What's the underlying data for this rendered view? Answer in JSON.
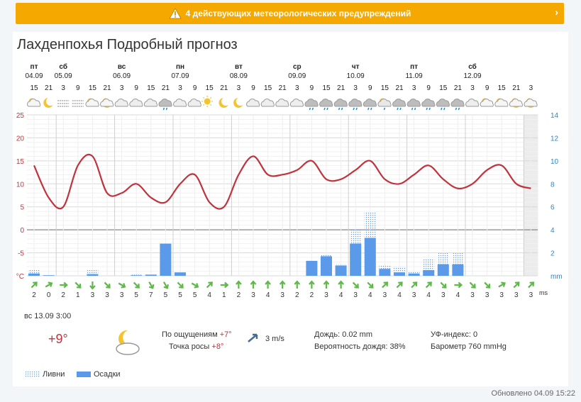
{
  "banner": {
    "text": "4 действующих метеорологических предупреждений",
    "color": "#f5a800"
  },
  "page_title": "Лахденпохья Подробный прогноз",
  "days": [
    {
      "label": "пт",
      "date": "04.09"
    },
    {
      "label": "сб",
      "date": "05.09"
    },
    {
      "label": "вс",
      "date": "06.09"
    },
    {
      "label": "пн",
      "date": "07.09"
    },
    {
      "label": "вт",
      "date": "08.09"
    },
    {
      "label": "ср",
      "date": "09.09"
    },
    {
      "label": "чт",
      "date": "10.09"
    },
    {
      "label": "пт",
      "date": "11.09"
    },
    {
      "label": "сб",
      "date": "12.09"
    }
  ],
  "hours": [
    "15",
    "21",
    "3",
    "9",
    "15",
    "21",
    "3",
    "9",
    "15",
    "21",
    "3",
    "9",
    "15",
    "21",
    "3",
    "9",
    "15",
    "21",
    "3",
    "9",
    "15",
    "21",
    "3",
    "9",
    "15",
    "21",
    "3",
    "9",
    "15",
    "21",
    "3",
    "9",
    "15",
    "21",
    "3"
  ],
  "icons": [
    "partly-cloudy-icon",
    "moon-icon",
    "fog-icon",
    "fog-icon",
    "sun-cloud-icon",
    "moon-cloud-icon",
    "cloud-icon",
    "cloud-icon",
    "cloud-icon",
    "rain-cloud-icon",
    "cloud-icon",
    "cloud-icon",
    "sun-icon",
    "moon-icon",
    "moon-icon",
    "cloud-icon",
    "cloud-icon",
    "cloud-icon",
    "cloud-icon",
    "rain-cloud-icon",
    "rain-cloud-icon",
    "rain-cloud-icon",
    "rain-cloud-icon",
    "rain-cloud-icon",
    "sun-rain-icon",
    "rain-cloud-icon",
    "rain-cloud-icon",
    "rain-cloud-icon",
    "rain-cloud-icon",
    "rain-cloud-icon",
    "cloud-icon",
    "sun-cloud-icon",
    "sun-cloud-icon",
    "moon-cloud-icon",
    "moon-cloud-icon"
  ],
  "chart_data": {
    "type": "line+bar",
    "temp_ylabels": [
      "25",
      "20",
      "15",
      "10",
      "5",
      "0",
      "-5",
      "°C"
    ],
    "precip_ylabels": [
      "14",
      "12",
      "10",
      "8",
      "6",
      "4",
      "2",
      "mm"
    ],
    "temp_range": [
      -10,
      25
    ],
    "precip_range": [
      0,
      14
    ],
    "temperature": [
      14,
      7,
      5,
      14,
      16,
      8,
      8,
      10,
      7,
      6,
      10,
      12,
      6,
      5,
      12,
      16,
      12,
      12,
      13,
      15,
      11,
      11,
      13,
      15,
      11,
      10,
      12,
      14,
      11,
      9,
      10,
      13,
      14,
      10,
      9
    ],
    "precip_rain": [
      0.2,
      0.05,
      0,
      0,
      0.15,
      0,
      0,
      0.05,
      0.1,
      2.8,
      0.3,
      0,
      0,
      0,
      0,
      0,
      0,
      0,
      0,
      1.3,
      1.7,
      0.9,
      2.8,
      3.3,
      0.6,
      0.3,
      0.2,
      0.5,
      1.0,
      1.0,
      0,
      0,
      0,
      0,
      0
    ],
    "precip_showers": [
      0.5,
      0,
      0,
      0,
      0.5,
      0,
      0,
      0.1,
      0.1,
      0,
      0,
      0,
      0,
      0,
      0,
      0,
      0,
      0,
      0,
      0,
      1.9,
      1.0,
      4.0,
      5.5,
      0.9,
      0.8,
      0.4,
      1.5,
      2.0,
      2.0,
      0,
      0,
      0,
      0,
      0
    ],
    "wind": [
      2,
      0,
      2,
      1,
      3,
      3,
      3,
      5,
      7,
      5,
      5,
      5,
      4,
      1,
      2,
      3,
      4,
      3,
      2,
      2,
      3,
      4,
      3,
      4,
      3,
      4,
      3,
      4,
      3,
      4,
      3,
      3,
      3,
      3,
      3
    ],
    "wind_unit": "ms"
  },
  "details": {
    "datetime": "вс 13.09 3:00",
    "temp": "+9°",
    "feels_label": "По ощущениям",
    "feels_value": "+7°",
    "dew_label": "Точка росы",
    "dew_value": "+8°",
    "wind_value": "3 m/s",
    "rain_label": "Дождь:",
    "rain_value": "0.02 mm",
    "prob_label": "Вероятность дождя:",
    "prob_value": "38%",
    "uv_label": "УФ-индекс:",
    "uv_value": "0",
    "baro_label": "Барометр",
    "baro_value": "760 mmHg"
  },
  "legend": {
    "showers": "Ливни",
    "precip": "Осадки"
  },
  "updated": "Обновлено 04.09 15:22",
  "colors": {
    "temp_line": "#c0333d",
    "bar": "#5b9ae8",
    "wind_arrow": "#5fb84a",
    "label_red": "#c0333d",
    "label_blue": "#2f87c4"
  }
}
